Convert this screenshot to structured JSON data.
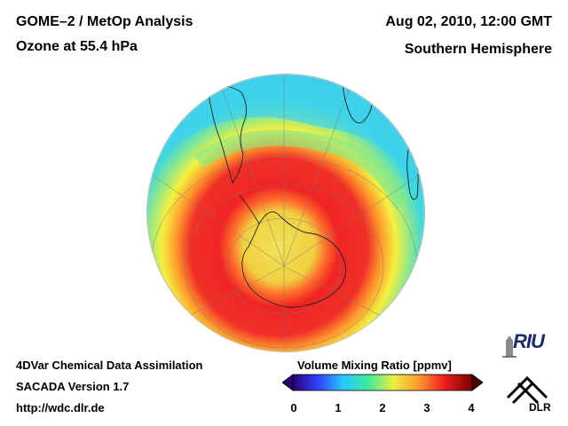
{
  "header": {
    "title_line1": "GOME–2 / MetOp Analysis",
    "title_line2": "Ozone at 55.4 hPa",
    "datetime": "Aug 02, 2010, 12:00 GMT",
    "region": "Southern Hemisphere"
  },
  "footer": {
    "line1": "4DVar Chemical Data Assimilation",
    "line2": "SACADA Version 1.7",
    "line3": "http://wdc.dlr.de"
  },
  "colorbar": {
    "title": "Volume Mixing Ratio [ppmv]",
    "ticks": [
      "0",
      "1",
      "2",
      "3",
      "4"
    ],
    "colors": [
      "#2a0070",
      "#3040ff",
      "#28c8ff",
      "#40e8a0",
      "#e8f040",
      "#ff9a30",
      "#f02020",
      "#7a0000"
    ]
  },
  "logos": {
    "riu": "RIU",
    "dlr": "DLR"
  },
  "map_colors": {
    "ocean_outer": "#3fd2ee",
    "midlat": "#7fe890",
    "ring_yellow": "#f4f040",
    "ring_orange": "#ff9a2c",
    "vortex_red": "#f02424",
    "core_yellow": "#f0e860"
  }
}
